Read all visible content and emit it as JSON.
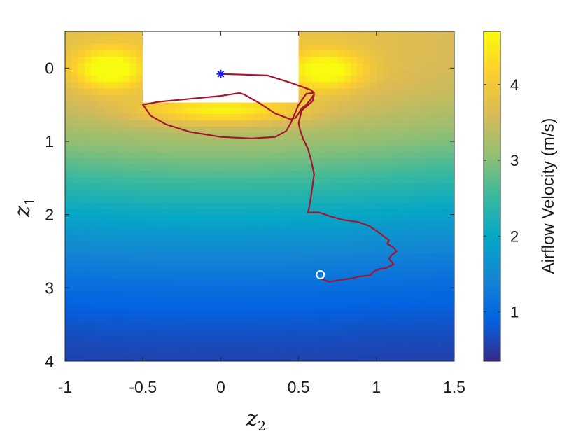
{
  "chart_data": {
    "type": "heatmap",
    "title": "",
    "xlabel": {
      "main": "z",
      "sub": "2"
    },
    "ylabel": {
      "main": "z",
      "sub": "1"
    },
    "xlim": [
      -1,
      1.5
    ],
    "ylim": [
      4,
      -0.5
    ],
    "y_axis_direction": "reversed (0 at top, 4 at bottom)",
    "x_ticks": [
      -1,
      -0.5,
      0,
      0.5,
      1,
      1.5
    ],
    "x_tick_labels": [
      "-1",
      "-0.5",
      "0",
      "0.5",
      "1",
      "1.5"
    ],
    "y_ticks": [
      0,
      1,
      2,
      3,
      4
    ],
    "y_tick_labels": [
      "0",
      "1",
      "2",
      "3",
      "4"
    ],
    "grid": false,
    "colormap": "parula",
    "colorbar": {
      "label": "Airflow Velocity (m/s)",
      "range": [
        0.35,
        4.7
      ],
      "ticks": [
        1,
        2,
        3,
        4
      ],
      "tick_labels": [
        "1",
        "2",
        "3",
        "4"
      ],
      "placement": "right"
    },
    "masked_region": {
      "z2": [
        -0.5,
        0.5
      ],
      "z1": [
        -0.5,
        0.47
      ],
      "color": "#ffffff"
    },
    "trajectory": {
      "color": "#a3162d",
      "points": [
        [
          0.0,
          0.08
        ],
        [
          0.3,
          0.1
        ],
        [
          0.45,
          0.2
        ],
        [
          0.58,
          0.3
        ],
        [
          0.6,
          0.34
        ],
        [
          0.55,
          0.35
        ],
        [
          0.5,
          0.5
        ],
        [
          0.45,
          0.75
        ],
        [
          0.42,
          0.86
        ],
        [
          0.35,
          0.94
        ],
        [
          0.2,
          0.96
        ],
        [
          0.0,
          0.94
        ],
        [
          -0.2,
          0.87
        ],
        [
          -0.35,
          0.77
        ],
        [
          -0.45,
          0.65
        ],
        [
          -0.5,
          0.5
        ],
        [
          -0.4,
          0.46
        ],
        [
          -0.2,
          0.42
        ],
        [
          0.0,
          0.38
        ],
        [
          0.12,
          0.34
        ],
        [
          0.15,
          0.36
        ],
        [
          0.25,
          0.48
        ],
        [
          0.35,
          0.62
        ],
        [
          0.45,
          0.7
        ],
        [
          0.48,
          0.68
        ],
        [
          0.5,
          0.62
        ],
        [
          0.52,
          0.55
        ],
        [
          0.55,
          0.5
        ],
        [
          0.58,
          0.42
        ],
        [
          0.6,
          0.36
        ],
        [
          0.59,
          0.45
        ],
        [
          0.52,
          0.58
        ],
        [
          0.5,
          0.75
        ],
        [
          0.51,
          0.85
        ],
        [
          0.53,
          0.97
        ],
        [
          0.56,
          1.1
        ],
        [
          0.58,
          1.25
        ],
        [
          0.6,
          1.45
        ],
        [
          0.59,
          1.6
        ],
        [
          0.58,
          1.75
        ],
        [
          0.57,
          1.88
        ],
        [
          0.56,
          1.97
        ],
        [
          0.63,
          1.97
        ],
        [
          0.7,
          2.02
        ],
        [
          0.78,
          2.07
        ],
        [
          0.88,
          2.1
        ],
        [
          0.95,
          2.15
        ],
        [
          1.0,
          2.22
        ],
        [
          1.05,
          2.3
        ],
        [
          1.08,
          2.35
        ],
        [
          1.07,
          2.4
        ],
        [
          1.11,
          2.45
        ],
        [
          1.13,
          2.5
        ],
        [
          1.1,
          2.55
        ],
        [
          1.08,
          2.6
        ],
        [
          1.11,
          2.68
        ],
        [
          1.06,
          2.73
        ],
        [
          1.02,
          2.74
        ],
        [
          0.98,
          2.78
        ],
        [
          0.96,
          2.83
        ],
        [
          0.9,
          2.84
        ],
        [
          0.84,
          2.87
        ],
        [
          0.78,
          2.89
        ],
        [
          0.74,
          2.9
        ],
        [
          0.7,
          2.92
        ],
        [
          0.65,
          2.88
        ]
      ]
    },
    "start_marker": {
      "z2": 0.0,
      "z1": 0.08,
      "symbol": "*",
      "color": "#1a1aff"
    },
    "end_marker": {
      "z2": 0.64,
      "z1": 2.82,
      "symbol": "o",
      "color": "#ffffff"
    }
  }
}
